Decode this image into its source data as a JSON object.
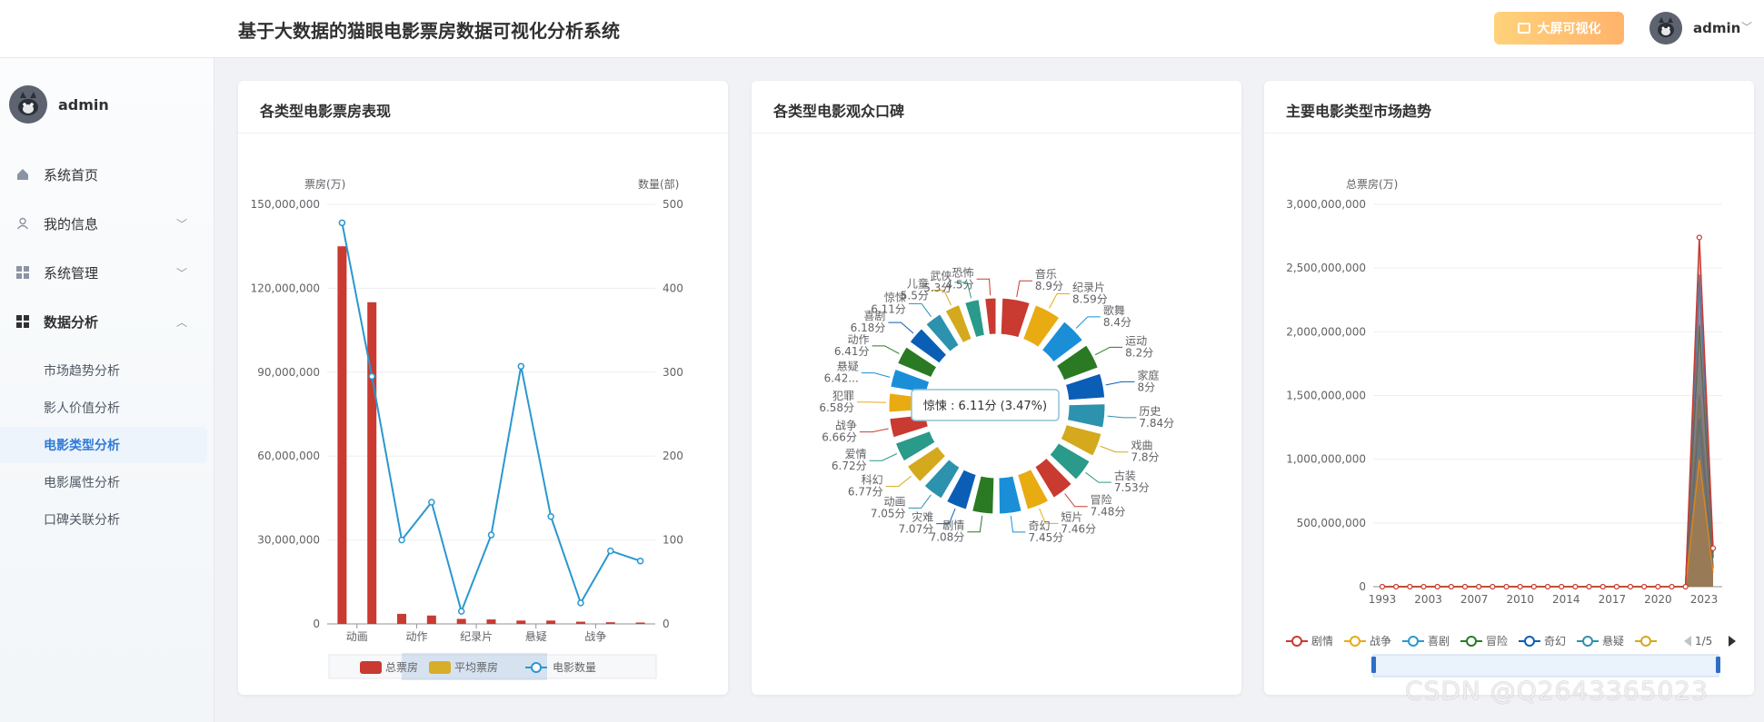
{
  "header": {
    "title": "基于大数据的猫眼电影票房数据可视化分析系统",
    "bigscreen_label": "大屏可视化",
    "username": "admin"
  },
  "sidebar": {
    "username": "admin",
    "items": [
      {
        "label": "系统首页",
        "icon": "home-icon"
      },
      {
        "label": "我的信息",
        "icon": "user-icon",
        "arrow": "﹀"
      },
      {
        "label": "系统管理",
        "icon": "grid-icon",
        "arrow": "﹀"
      },
      {
        "label": "数据分析",
        "icon": "grid-icon",
        "arrow": "︿"
      }
    ],
    "sub_items": [
      "市场趋势分析",
      "影人价值分析",
      "电影类型分析",
      "电影属性分析",
      "口碑关联分析"
    ],
    "active_sub": "电影类型分析"
  },
  "card1": {
    "title": "各类型电影票房表现",
    "chart_data": {
      "type": "bar",
      "yleft_label": "票房(万)",
      "yright_label": "数量(部)",
      "yleft_ticks": [
        "0",
        "30,000,000",
        "60,000,000",
        "90,000,000",
        "120,000,000",
        "150,000,000"
      ],
      "yright_ticks": [
        "0",
        "100",
        "200",
        "300",
        "400",
        "500"
      ],
      "ylim_left": [
        0,
        150000000
      ],
      "ylim_right": [
        0,
        500
      ],
      "x_labels": [
        "动画",
        "动作",
        "纪录片",
        "悬疑",
        "战争"
      ],
      "bar_values": [
        135000000,
        115000000,
        3600000,
        3000000,
        1800000,
        1600000,
        1200000,
        1200000,
        800000,
        600000,
        500000
      ],
      "line_values": [
        478,
        295,
        100,
        145,
        15,
        106,
        307,
        128,
        25,
        87,
        75
      ],
      "legend": [
        "总票房",
        "平均票房",
        "电影数量"
      ],
      "colors": {
        "bar": "#c93a31",
        "avg": "#d8ad29",
        "line": "#2a97cf"
      }
    }
  },
  "card2": {
    "title": "各类型电影观众口碑",
    "tooltip": "惊悚 : 6.11分 (3.47%)",
    "chart_data": {
      "type": "pie",
      "slices": [
        {
          "name": "音乐",
          "value": 8.9,
          "label": "8.9分"
        },
        {
          "name": "纪录片",
          "value": 8.59,
          "label": "8.59分"
        },
        {
          "name": "歌舞",
          "value": 8.4,
          "label": "8.4分"
        },
        {
          "name": "运动",
          "value": 8.2,
          "label": "8.2分"
        },
        {
          "name": "家庭",
          "value": 8,
          "label": "8分"
        },
        {
          "name": "历史",
          "value": 7.84,
          "label": "7.84分"
        },
        {
          "name": "戏曲",
          "value": 7.8,
          "label": "7.8分"
        },
        {
          "name": "古装",
          "value": 7.53,
          "label": "7.53分"
        },
        {
          "name": "冒险",
          "value": 7.48,
          "label": "7.48分"
        },
        {
          "name": "短片",
          "value": 7.46,
          "label": "7.46分"
        },
        {
          "name": "奇幻",
          "value": 7.45,
          "label": "7.45分"
        },
        {
          "name": "剧情",
          "value": 7.08,
          "label": "7.08分"
        },
        {
          "name": "灾难",
          "value": 7.07,
          "label": "7.07分"
        },
        {
          "name": "动画",
          "value": 7.05,
          "label": "7.05分"
        },
        {
          "name": "科幻",
          "value": 6.77,
          "label": "6.77分"
        },
        {
          "name": "爱情",
          "value": 6.72,
          "label": "6.72分"
        },
        {
          "name": "战争",
          "value": 6.66,
          "label": "6.66分"
        },
        {
          "name": "犯罪",
          "value": 6.58,
          "label": "6.58分"
        },
        {
          "name": "悬疑",
          "value": 6.42,
          "label": "6.42..."
        },
        {
          "name": "动作",
          "value": 6.41,
          "label": "6.41分"
        },
        {
          "name": "喜剧",
          "value": 6.18,
          "label": "6.18分"
        },
        {
          "name": "惊悚",
          "value": 6.11,
          "label": "6.11分"
        },
        {
          "name": "儿童",
          "value": 5.5,
          "label": "5.5分"
        },
        {
          "name": "武侠",
          "value": 5.3,
          "label": "5.3分"
        },
        {
          "name": "恐怖",
          "value": 4.5,
          "label": "4.5分"
        }
      ],
      "palette": [
        "#c93a31",
        "#e9ab12",
        "#1a8fd8",
        "#2a7a24",
        "#0b5eb5",
        "#2c92ae",
        "#d4a91d",
        "#2a9a8a"
      ]
    }
  },
  "card3": {
    "title": "主要电影类型市场趋势",
    "pager": "1/5",
    "chart_data": {
      "type": "area",
      "ylabel": "总票房(万)",
      "y_ticks": [
        "0",
        "500,000,000",
        "1,000,000,000",
        "1,500,000,000",
        "2,000,000,000",
        "2,500,000,000",
        "3,000,000,000"
      ],
      "ylim": [
        0,
        3000000000
      ],
      "x_labels": [
        "1993",
        "2003",
        "2007",
        "2010",
        "2014",
        "2017",
        "2020",
        "2023"
      ],
      "series": [
        {
          "name": "剧情",
          "color": "#c93a31",
          "peak": 2740000000
        },
        {
          "name": "战争",
          "color": "#e9ab12",
          "peak": 1000000000
        },
        {
          "name": "喜剧",
          "color": "#2a97cf",
          "peak": 2450000000
        },
        {
          "name": "冒险",
          "color": "#2a7a24",
          "peak": 2050000000
        },
        {
          "name": "奇幻",
          "color": "#0b5eb5",
          "peak": 2420000000
        },
        {
          "name": "悬疑",
          "color": "#2c92ae",
          "peak": 1320000000
        },
        {
          "name": "",
          "color": "#d4a91d",
          "peak": 1500000000
        }
      ]
    }
  },
  "watermark": "CSDN @Q2643365023"
}
